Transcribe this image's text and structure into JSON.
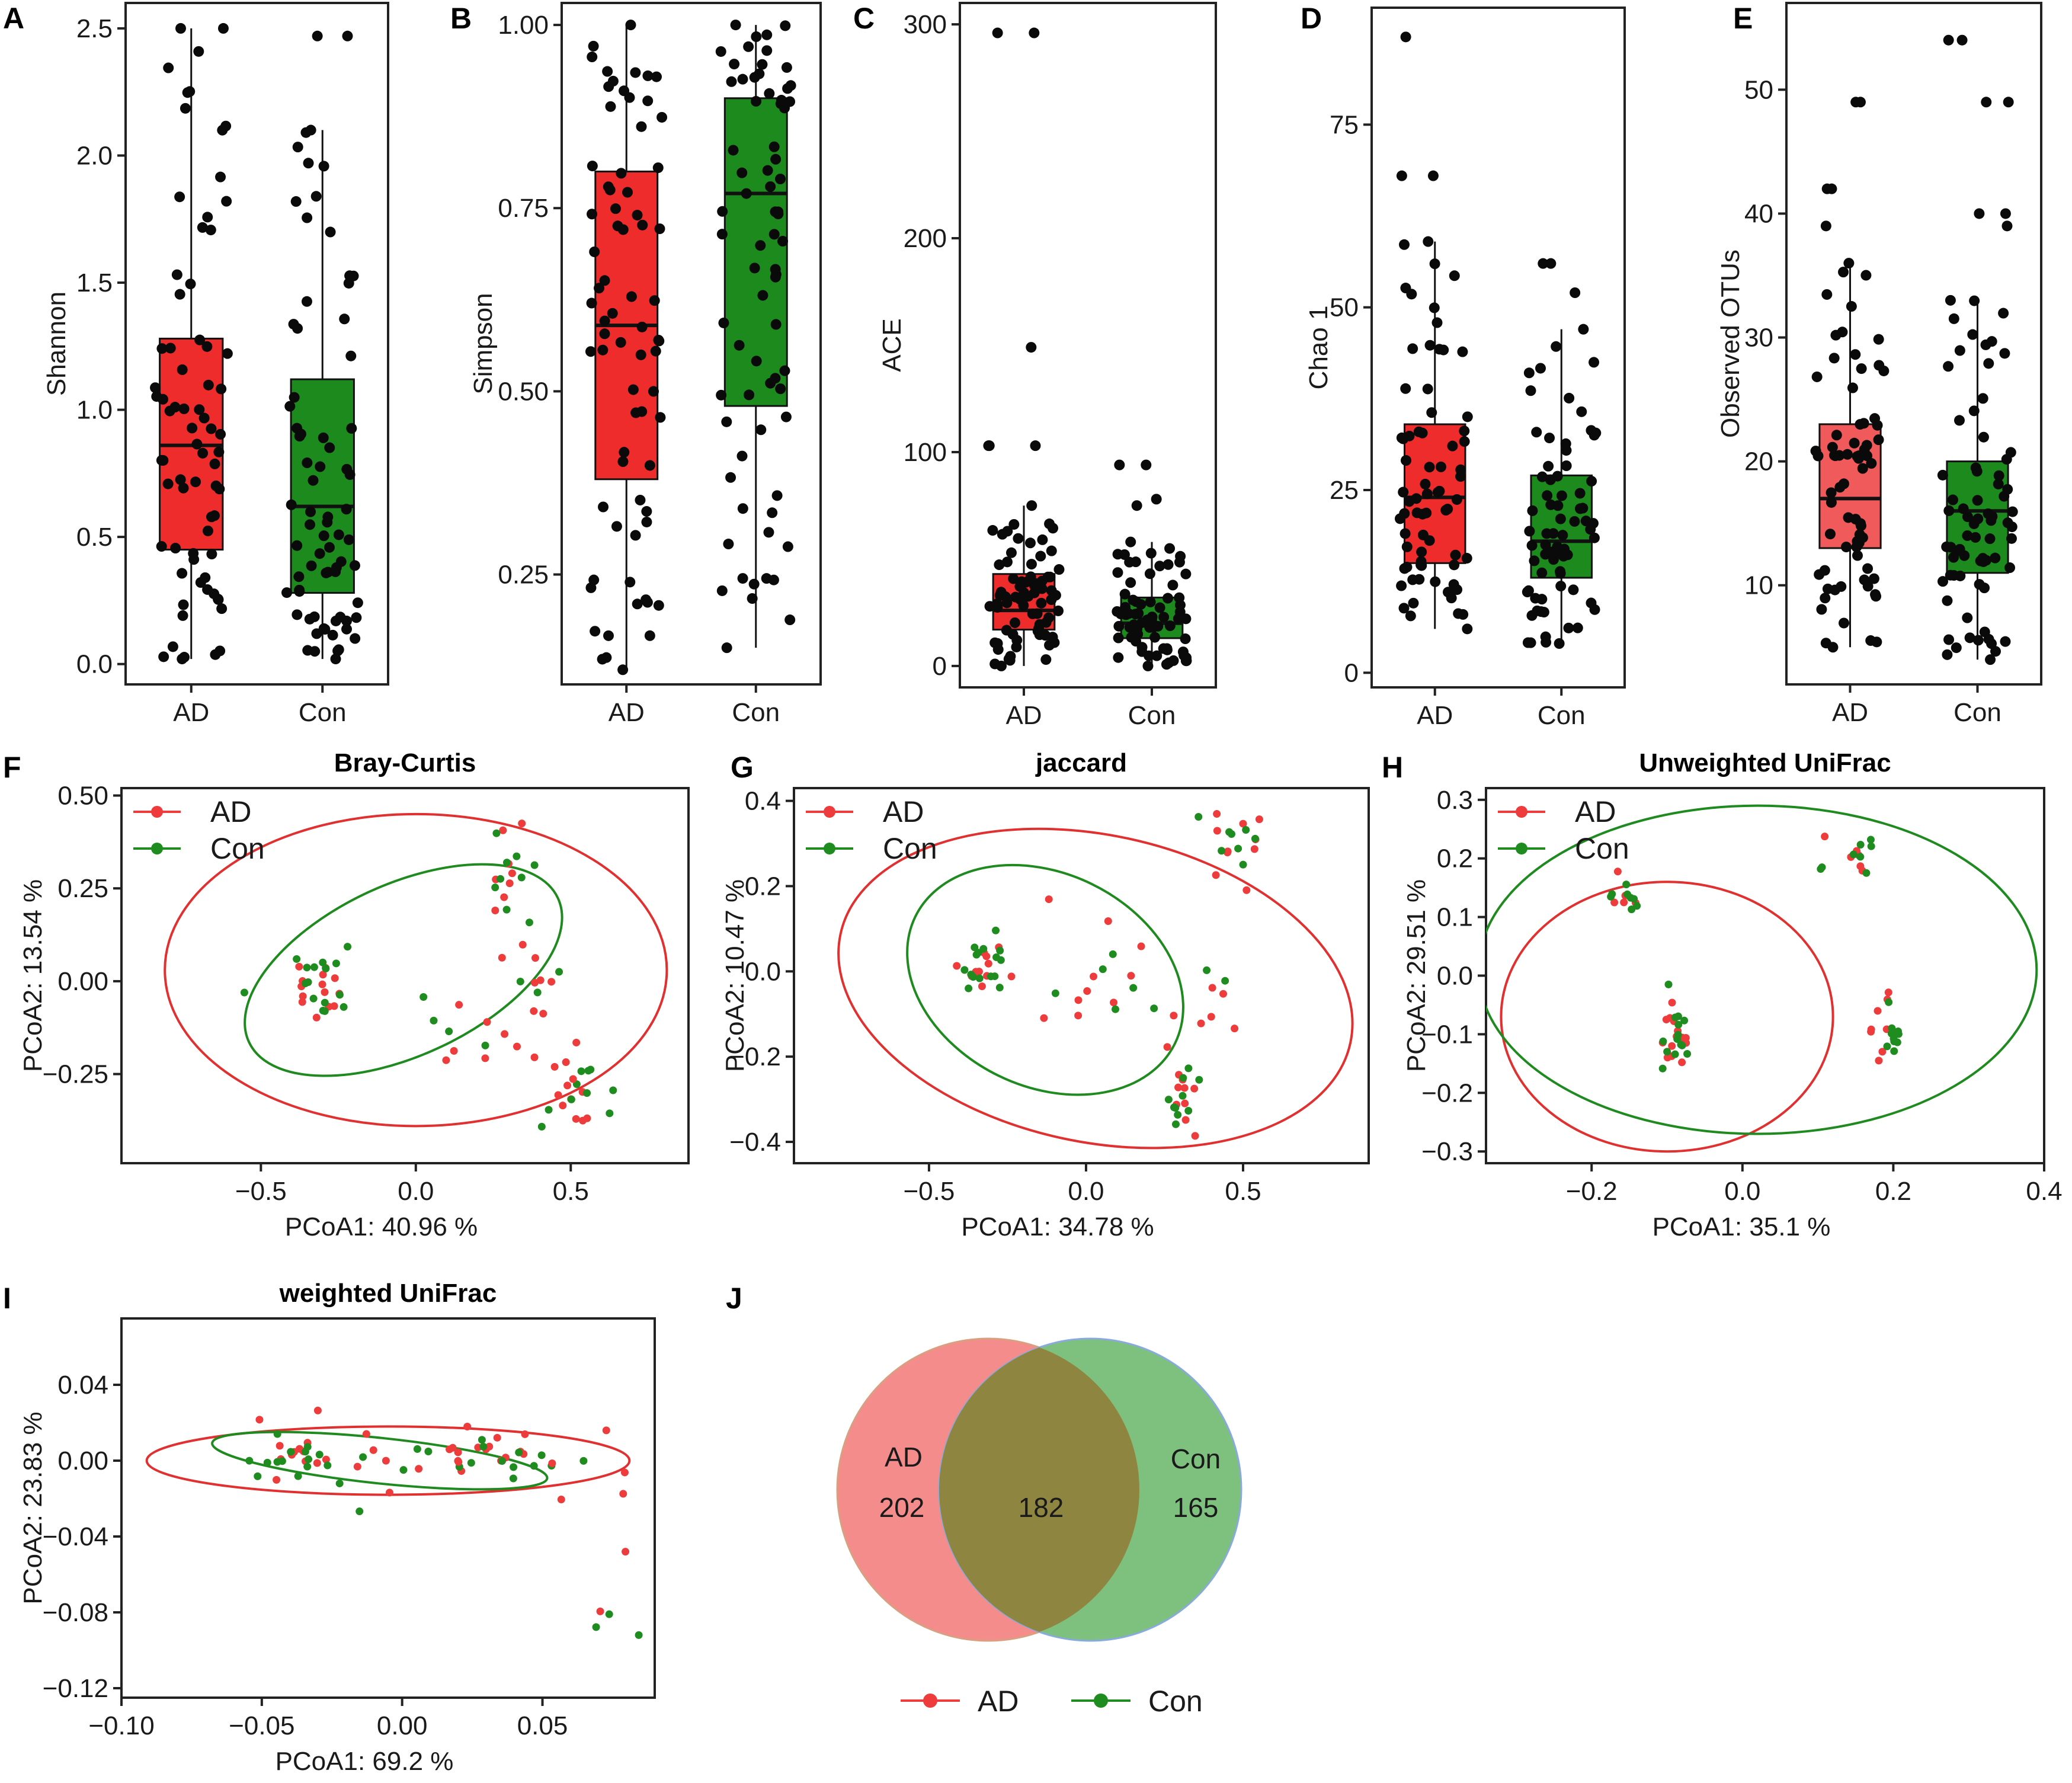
{
  "colors": {
    "ad_fill": "#ee2c2c",
    "con_fill": "#1d8a1d",
    "ad_light": "#f05a5a",
    "ad_point": "#ee3b3b",
    "con_point": "#1e8c1e",
    "ellipse_ad": "#e03030",
    "ellipse_con": "#1f8a1f",
    "venn_ad": "#f58c8c",
    "venn_con": "#7ec07e",
    "venn_overlap": "#8e8640"
  },
  "chart_data": [
    {
      "id": "A",
      "letter": "A",
      "type": "box",
      "title": "",
      "ylabel": "Shannon",
      "categories": [
        "AD",
        "Con"
      ],
      "ylim": [
        -0.08,
        2.6
      ],
      "yticks": [
        0.0,
        0.5,
        1.0,
        1.5,
        2.0,
        2.5
      ],
      "ytick_labels": [
        "0.0",
        "0.5",
        "1.0",
        "1.5",
        "2.0",
        "2.5"
      ],
      "boxes": [
        {
          "group": "AD",
          "q1": 0.45,
          "median": 0.86,
          "q3": 1.28,
          "whisker_low": 0.02,
          "whisker_high": 2.5,
          "outliers": [
            2.5
          ]
        },
        {
          "group": "Con",
          "q1": 0.28,
          "median": 0.62,
          "q3": 1.12,
          "whisker_low": 0.02,
          "whisker_high": 2.1,
          "outliers": [
            2.47,
            2.47
          ]
        }
      ]
    },
    {
      "id": "B",
      "letter": "B",
      "type": "box",
      "title": "",
      "ylabel": "Simpson",
      "categories": [
        "AD",
        "Con"
      ],
      "ylim": [
        0.1,
        1.03
      ],
      "yticks": [
        0.25,
        0.5,
        0.75,
        1.0
      ],
      "ytick_labels": [
        "0.25",
        "0.50",
        "0.75",
        "1.00"
      ],
      "boxes": [
        {
          "group": "AD",
          "q1": 0.38,
          "median": 0.59,
          "q3": 0.8,
          "whisker_low": 0.12,
          "whisker_high": 1.0,
          "outliers": []
        },
        {
          "group": "Con",
          "q1": 0.48,
          "median": 0.77,
          "q3": 0.9,
          "whisker_low": 0.15,
          "whisker_high": 1.0,
          "outliers": []
        }
      ]
    },
    {
      "id": "C",
      "letter": "C",
      "type": "box",
      "title": "",
      "ylabel": "ACE",
      "categories": [
        "AD",
        "Con"
      ],
      "ylim": [
        -10,
        310
      ],
      "yticks": [
        0,
        100,
        200,
        300
      ],
      "ytick_labels": [
        "0",
        "100",
        "200",
        "300"
      ],
      "boxes": [
        {
          "group": "AD",
          "q1": 17,
          "median": 26,
          "q3": 43,
          "whisker_low": 0,
          "whisker_high": 75,
          "outliers": [
            296,
            296,
            149,
            103,
            103,
            103
          ]
        },
        {
          "group": "Con",
          "q1": 13,
          "median": 20,
          "q3": 32,
          "whisker_low": 0,
          "whisker_high": 58,
          "outliers": [
            94,
            94,
            78,
            75
          ]
        }
      ]
    },
    {
      "id": "D",
      "letter": "D",
      "type": "box",
      "title": "",
      "ylabel": "Chao 1",
      "categories": [
        "AD",
        "Con"
      ],
      "ylim": [
        -2,
        91
      ],
      "yticks": [
        0,
        25,
        50,
        75
      ],
      "ytick_labels": [
        "0",
        "25",
        "50",
        "75"
      ],
      "boxes": [
        {
          "group": "AD",
          "q1": 15,
          "median": 24,
          "q3": 34,
          "whisker_low": 6,
          "whisker_high": 59,
          "outliers": [
            87,
            68,
            68
          ]
        },
        {
          "group": "Con",
          "q1": 13,
          "median": 18,
          "q3": 27,
          "whisker_low": 4,
          "whisker_high": 47,
          "outliers": [
            56,
            56,
            52
          ]
        }
      ]
    },
    {
      "id": "E",
      "letter": "E",
      "type": "box",
      "title": "",
      "ylabel": "Observed OTUs",
      "categories": [
        "AD",
        "Con"
      ],
      "ylim": [
        2,
        57
      ],
      "yticks": [
        10,
        20,
        30,
        40,
        50
      ],
      "ytick_labels": [
        "10",
        "20",
        "30",
        "40",
        "50"
      ],
      "boxes": [
        {
          "group": "AD",
          "q1": 13,
          "median": 17,
          "q3": 23,
          "whisker_low": 5,
          "whisker_high": 36,
          "outliers": [
            49,
            49,
            42,
            42,
            39
          ]
        },
        {
          "group": "Con",
          "q1": 11,
          "median": 16,
          "q3": 20,
          "whisker_low": 4,
          "whisker_high": 33,
          "outliers": [
            54,
            54,
            49,
            49,
            40,
            40,
            39
          ]
        }
      ]
    },
    {
      "id": "F",
      "letter": "F",
      "type": "scatter",
      "title": "Bray-Curtis",
      "xlabel": "PCoA1:  40.96 %",
      "ylabel": "PCoA2:  13.54 %",
      "xlim": [
        -0.95,
        0.88
      ],
      "ylim": [
        -0.49,
        0.52
      ],
      "xticks": [
        -0.5,
        0.0,
        0.5
      ],
      "xtick_labels": [
        "−0.5",
        "0.0",
        "0.5"
      ],
      "yticks": [
        -0.25,
        0.0,
        0.25,
        0.5
      ],
      "ytick_labels": [
        "−0.25",
        "0.00",
        "0.25",
        "0.50"
      ],
      "legend": {
        "position": "top-left",
        "entries": [
          "AD",
          "Con"
        ]
      },
      "ellipses": [
        {
          "group": "AD",
          "cx": 0.0,
          "cy": 0.03,
          "rx": 0.81,
          "ry": 0.42,
          "angle": 0
        },
        {
          "group": "Con",
          "cx": -0.04,
          "cy": 0.03,
          "rx": 0.55,
          "ry": 0.23,
          "angle": 25
        }
      ],
      "clusters": [
        {
          "cx": -0.3,
          "cy": 0.0,
          "sx": 0.07,
          "sy": 0.05,
          "n_ad": 14,
          "n_con": 16
        },
        {
          "cx": 0.3,
          "cy": 0.32,
          "sx": 0.03,
          "sy": 0.1,
          "n_ad": 8,
          "n_con": 8
        },
        {
          "cx": 0.5,
          "cy": -0.3,
          "sx": 0.06,
          "sy": 0.05,
          "n_ad": 12,
          "n_con": 10
        },
        {
          "cx": 0.4,
          "cy": 0.0,
          "sx": 0.06,
          "sy": 0.08,
          "n_ad": 8,
          "n_con": 4
        },
        {
          "cx": 0.1,
          "cy": -0.2,
          "sx": 0.2,
          "sy": 0.12,
          "n_ad": 8,
          "n_con": 4
        }
      ]
    },
    {
      "id": "G",
      "letter": "G",
      "type": "scatter",
      "title": "jaccard",
      "xlabel": "PCoA1:  34.78 %",
      "ylabel": "PCoA2:  10.47 %",
      "xlim": [
        -0.93,
        0.9
      ],
      "ylim": [
        -0.45,
        0.43
      ],
      "xticks": [
        -0.5,
        0.0,
        0.5
      ],
      "xtick_labels": [
        "−0.5",
        "0.0",
        "0.5"
      ],
      "yticks": [
        -0.4,
        -0.2,
        0.0,
        0.2,
        0.4
      ],
      "ytick_labels": [
        "−0.4",
        "−0.2",
        "0.0",
        "0.2",
        "0.4"
      ],
      "legend": {
        "position": "top-left",
        "entries": [
          "AD",
          "Con"
        ]
      },
      "ellipses": [
        {
          "group": "AD",
          "cx": 0.03,
          "cy": -0.04,
          "rx": 0.83,
          "ry": 0.36,
          "angle": -12
        },
        {
          "group": "Con",
          "cx": -0.13,
          "cy": -0.02,
          "rx": 0.46,
          "ry": 0.25,
          "angle": -26
        }
      ],
      "clusters": [
        {
          "cx": -0.33,
          "cy": 0.01,
          "sx": 0.05,
          "sy": 0.04,
          "n_ad": 12,
          "n_con": 16
        },
        {
          "cx": 0.5,
          "cy": 0.3,
          "sx": 0.05,
          "sy": 0.06,
          "n_ad": 10,
          "n_con": 8
        },
        {
          "cx": 0.3,
          "cy": -0.28,
          "sx": 0.03,
          "sy": 0.05,
          "n_ad": 10,
          "n_con": 10
        },
        {
          "cx": 0.0,
          "cy": -0.05,
          "sx": 0.15,
          "sy": 0.08,
          "n_ad": 10,
          "n_con": 6
        },
        {
          "cx": 0.4,
          "cy": -0.03,
          "sx": 0.05,
          "sy": 0.06,
          "n_ad": 6,
          "n_con": 2
        }
      ]
    },
    {
      "id": "H",
      "letter": "H",
      "type": "scatter",
      "title": "Unweighted UniFrac",
      "xlabel": "PCoA1:  35.1 %",
      "ylabel": "PCoA2:  29.51 %",
      "xlim": [
        -0.34,
        0.4
      ],
      "ylim": [
        -0.32,
        0.32
      ],
      "xticks": [
        -0.2,
        0.0,
        0.2,
        0.4
      ],
      "xtick_labels": [
        "−0.2",
        "0.0",
        "0.2",
        "0.4"
      ],
      "yticks": [
        -0.3,
        -0.2,
        -0.1,
        0.0,
        0.1,
        0.2,
        0.3
      ],
      "ytick_labels": [
        "−0.3",
        "−0.2",
        "−0.1",
        "0.0",
        "0.1",
        "0.2",
        "0.3"
      ],
      "legend": {
        "position": "top-left",
        "entries": [
          "AD",
          "Con"
        ]
      },
      "ellipses": [
        {
          "group": "AD",
          "cx": -0.1,
          "cy": -0.07,
          "rx": 0.22,
          "ry": 0.23,
          "angle": 0
        },
        {
          "group": "Con",
          "cx": 0.02,
          "cy": 0.01,
          "rx": 0.37,
          "ry": 0.28,
          "angle": 0
        }
      ],
      "clusters": [
        {
          "cx": -0.09,
          "cy": -0.1,
          "sx": 0.012,
          "sy": 0.03,
          "n_ad": 14,
          "n_con": 14
        },
        {
          "cx": -0.15,
          "cy": 0.13,
          "sx": 0.02,
          "sy": 0.015,
          "n_ad": 6,
          "n_con": 8
        },
        {
          "cx": 0.19,
          "cy": -0.09,
          "sx": 0.015,
          "sy": 0.03,
          "n_ad": 8,
          "n_con": 10
        },
        {
          "cx": 0.14,
          "cy": 0.21,
          "sx": 0.03,
          "sy": 0.02,
          "n_ad": 6,
          "n_con": 8
        }
      ]
    },
    {
      "id": "I",
      "letter": "I",
      "type": "scatter",
      "title": "weighted UniFrac",
      "xlabel": "PCoA1:  69.2 %",
      "ylabel": "PCoA2:  23.83 %",
      "xlim": [
        -0.1,
        0.09
      ],
      "ylim": [
        -0.125,
        0.075
      ],
      "xticks": [
        -0.1,
        -0.05,
        0.0,
        0.05
      ],
      "xtick_labels": [
        "−0.10",
        "−0.05",
        "0.00",
        "0.05"
      ],
      "yticks": [
        -0.12,
        -0.08,
        -0.04,
        0.0,
        0.04
      ],
      "ytick_labels": [
        "−0.12",
        "−0.08",
        "−0.04",
        "0.00",
        "0.04"
      ],
      "legend": {
        "position": "none",
        "entries": []
      },
      "ellipses": [
        {
          "group": "AD",
          "cx": -0.005,
          "cy": 0.0,
          "rx": 0.086,
          "ry": 0.018,
          "angle": 0
        },
        {
          "group": "Con",
          "cx": -0.008,
          "cy": 0.0,
          "rx": 0.06,
          "ry": 0.012,
          "angle": -6
        }
      ],
      "clusters": [
        {
          "cx": -0.04,
          "cy": 0.002,
          "sx": 0.007,
          "sy": 0.004,
          "n_ad": 10,
          "n_con": 14
        },
        {
          "cx": 0.03,
          "cy": 0.005,
          "sx": 0.012,
          "sy": 0.008,
          "n_ad": 14,
          "n_con": 10
        },
        {
          "cx": -0.005,
          "cy": 0.0,
          "sx": 0.025,
          "sy": 0.01,
          "n_ad": 14,
          "n_con": 8
        },
        {
          "cx": 0.078,
          "cy": -0.05,
          "sx": 0.008,
          "sy": 0.04,
          "n_ad": 6,
          "n_con": 3
        }
      ]
    }
  ],
  "venn": {
    "letter": "J",
    "left_label": "AD",
    "right_label": "Con",
    "left_only": "202",
    "overlap": "182",
    "right_only": "165",
    "legend": [
      "AD",
      "Con"
    ]
  }
}
